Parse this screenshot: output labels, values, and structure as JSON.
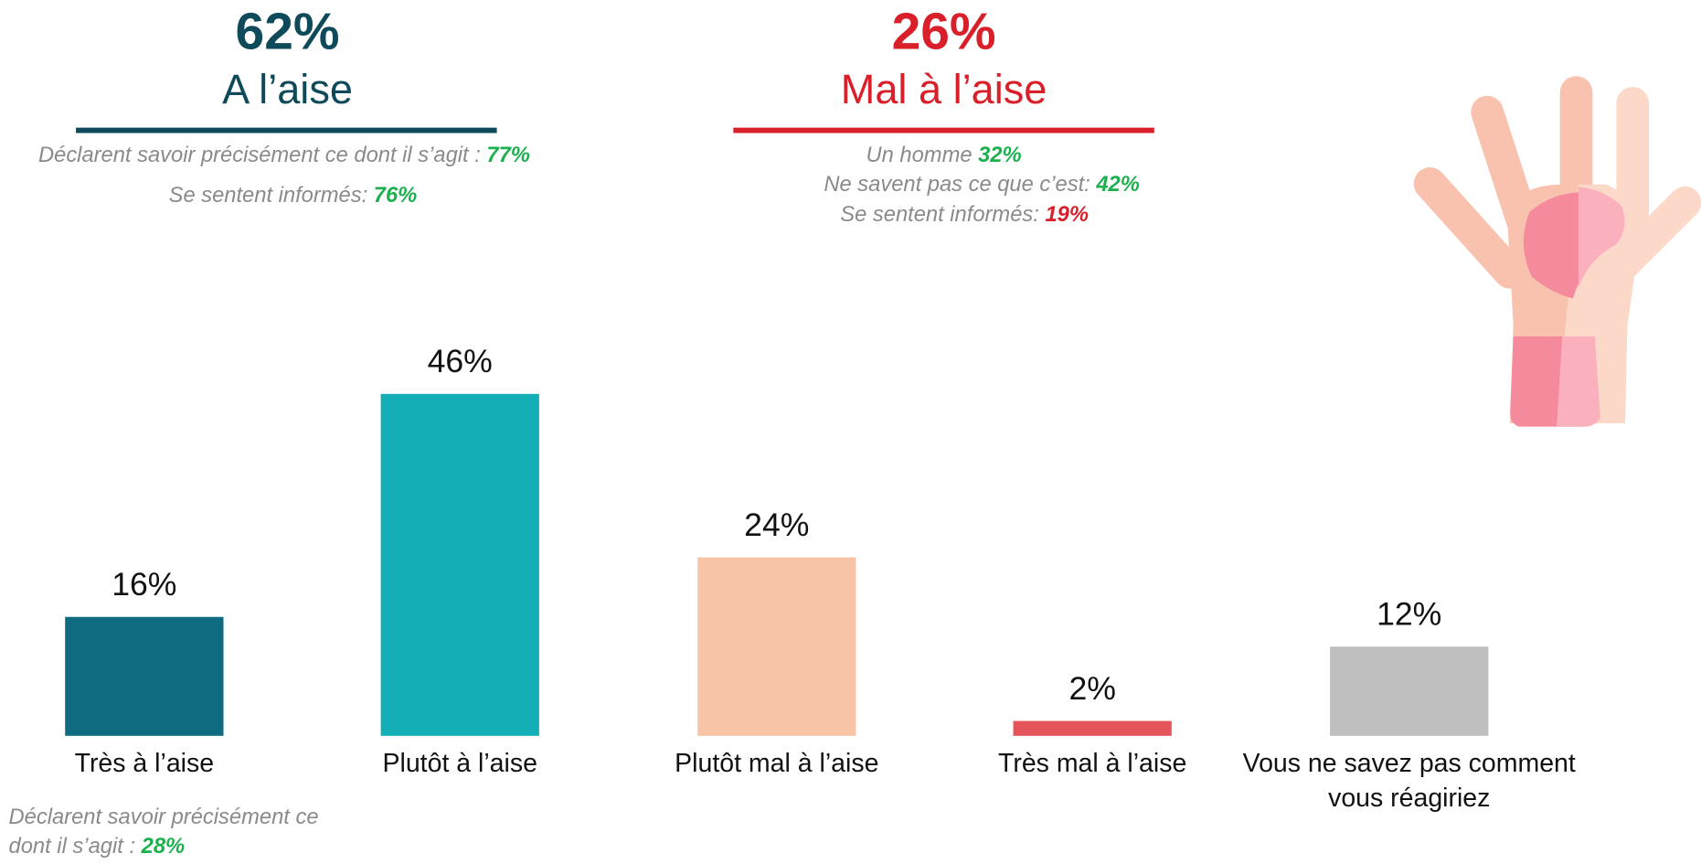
{
  "left_header": {
    "stat": "62%",
    "label": "A l’aise",
    "color": "#0f4a5a",
    "notes": [
      {
        "text": "Déclarent savoir précisément ce dont il s’agit :",
        "figure": "77%",
        "figure_color": "#1db04f"
      },
      {
        "text": "Se sentent informés:",
        "figure": "76%",
        "figure_color": "#1db04f"
      }
    ]
  },
  "right_header": {
    "stat": "26%",
    "label": "Mal à l’aise",
    "color": "#d9202a",
    "notes": [
      {
        "text": "Un homme",
        "figure": "32%",
        "figure_color": "#1db04f"
      },
      {
        "text": "Ne savent pas ce que c’est:",
        "figure": "42%",
        "figure_color": "#1db04f"
      },
      {
        "text": "Se sentent informés:",
        "figure": "19%",
        "figure_color": "#d9202a"
      }
    ]
  },
  "chart_data": {
    "type": "bar",
    "categories": [
      "Très à l’aise",
      "Plutôt à l’aise",
      "Plutôt mal à l’aise",
      "Très mal à l’aise",
      "Vous ne savez pas comment vous réagiriez"
    ],
    "values": [
      16,
      46,
      24,
      2,
      12
    ],
    "value_labels": [
      "16%",
      "46%",
      "24%",
      "2%",
      "12%"
    ],
    "colors": [
      "#0e6b80",
      "#14afb6",
      "#f7c4a5",
      "#e5545a",
      "#bfbfbf"
    ],
    "annotations": [
      {
        "text": "Déclarent savoir précisément ce dont il s’agit :",
        "figure": "28%"
      }
    ]
  }
}
